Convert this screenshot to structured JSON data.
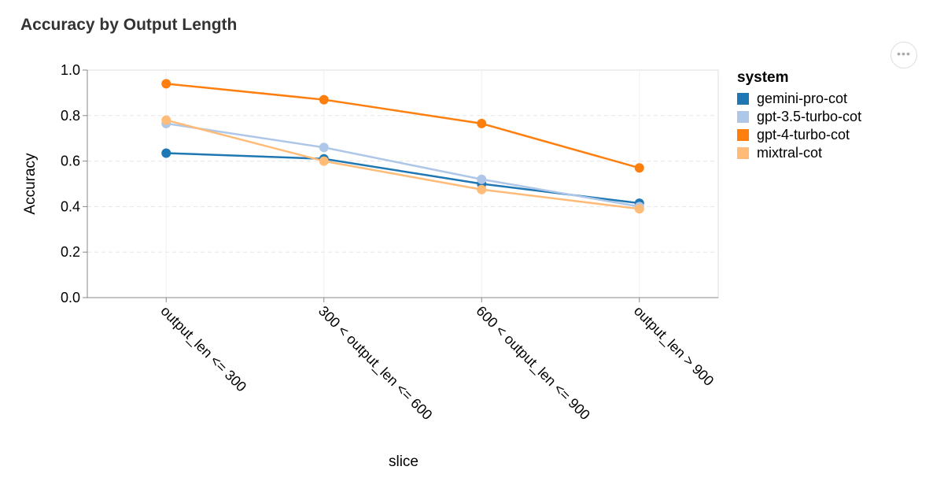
{
  "title": "Accuracy by Output Length",
  "menu": {
    "icon": "ellipsis-icon",
    "label": "•••"
  },
  "legend": {
    "title": "system",
    "placement": "right"
  },
  "chart_data": {
    "type": "line",
    "title": "Accuracy by Output Length",
    "xlabel": "slice",
    "ylabel": "Accuracy",
    "categories": [
      "output_len <= 300",
      "300 < output_len <= 600",
      "600 < output_len <= 900",
      "output_len > 900"
    ],
    "ylim": [
      0,
      1
    ],
    "yticks": [
      "0.0",
      "0.2",
      "0.4",
      "0.6",
      "0.8",
      "1.0"
    ],
    "grid": true,
    "series": [
      {
        "name": "gemini-pro-cot",
        "color": "#1f77b4",
        "values": [
          0.635,
          0.61,
          0.5,
          0.415
        ]
      },
      {
        "name": "gpt-3.5-turbo-cot",
        "color": "#aec7e8",
        "values": [
          0.765,
          0.66,
          0.52,
          0.4
        ]
      },
      {
        "name": "gpt-4-turbo-cot",
        "color": "#ff7f0e",
        "values": [
          0.94,
          0.87,
          0.765,
          0.57
        ]
      },
      {
        "name": "mixtral-cot",
        "color": "#ffbb78",
        "values": [
          0.78,
          0.6,
          0.475,
          0.39
        ]
      }
    ]
  }
}
